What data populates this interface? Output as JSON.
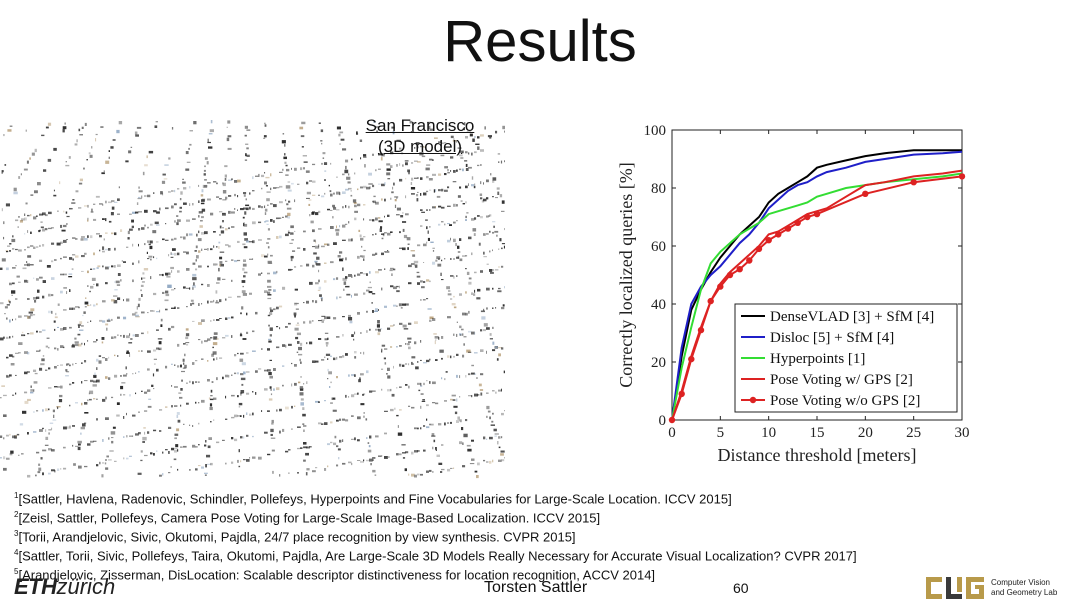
{
  "slide": {
    "title": "Results",
    "page_number": "60",
    "author": "Torsten Sattler"
  },
  "map": {
    "label_line1": "San Francisco",
    "label_line2": "(3D model)"
  },
  "references": [
    {
      "num": "1",
      "text": "[Sattler, Havlena, Radenovic, Schindler, Pollefeys, Hyperpoints and Fine Vocabularies for Large-Scale Location. ICCV 2015]"
    },
    {
      "num": "2",
      "text": "[Zeisl, Sattler, Pollefeys, Camera Pose Voting for Large-Scale Image-Based Localization. ICCV 2015]"
    },
    {
      "num": "3",
      "text": "[Torii, Arandjelovic, Sivic, Okutomi, Pajdla, 24/7 place recognition by view synthesis. CVPR 2015]"
    },
    {
      "num": "4",
      "text": "[Sattler, Torii, Sivic, Pollefeys, Taira, Okutomi, Pajdla, Are Large-Scale 3D Models Really Necessary for Accurate Visual Localization? CVPR 2017]"
    },
    {
      "num": "5",
      "text": "[Arandjelovic, Zisserman, DisLocation: Scalable descriptor distinctiveness for location recognition, ACCV 2014]"
    }
  ],
  "footer": {
    "eth_bold": "ETH",
    "eth_rest": "zürich",
    "lab_line1": "Computer Vision",
    "lab_line2": "and Geometry Lab",
    "lab_logo": "CVG"
  },
  "colors": {
    "densevlad": "#000000",
    "disloc": "#1f1fc8",
    "hyperpoints": "#33dd33",
    "pose_gps": "#dd2222",
    "pose_nogps": "#dd2222",
    "logo_gold": "#b89a4a",
    "logo_dark": "#3a3a3a"
  },
  "chart_data": {
    "type": "line",
    "xlabel": "Distance threshold [meters]",
    "ylabel": "Correctly localized queries [%]",
    "xlim": [
      0,
      30
    ],
    "ylim": [
      0,
      100
    ],
    "xticks": [
      0,
      5,
      10,
      15,
      20,
      25,
      30
    ],
    "yticks": [
      0,
      20,
      40,
      60,
      80,
      100
    ],
    "legend_position": "bottom-right",
    "series": [
      {
        "name": "DenseVLAD [3] + SfM [4]",
        "color": "#000000",
        "marker": false,
        "x": [
          0,
          1,
          2,
          3,
          4,
          5,
          6,
          7,
          8,
          9,
          10,
          11,
          12,
          13,
          14,
          15,
          16,
          18,
          20,
          22,
          25,
          28,
          30
        ],
        "y": [
          0,
          22,
          38,
          45,
          51,
          56,
          60,
          64,
          67,
          70,
          75,
          78,
          80,
          82,
          84,
          87,
          88,
          89.5,
          91,
          92,
          93,
          93,
          93
        ]
      },
      {
        "name": "Disloc [5] + SfM [4]",
        "color": "#1f1fc8",
        "marker": false,
        "x": [
          0,
          1,
          2,
          3,
          4,
          5,
          6,
          7,
          8,
          9,
          10,
          11,
          12,
          13,
          14,
          15,
          16,
          18,
          20,
          22,
          25,
          28,
          30
        ],
        "y": [
          0,
          25,
          40,
          46,
          50,
          53,
          57,
          61,
          64,
          68,
          73,
          76,
          79,
          81,
          82,
          84,
          85.5,
          87,
          89,
          90,
          91.5,
          92,
          92.5
        ]
      },
      {
        "name": "Hyperpoints [1]",
        "color": "#33dd33",
        "marker": false,
        "x": [
          0,
          1,
          2,
          3,
          4,
          5,
          6,
          7,
          8,
          9,
          10,
          11,
          12,
          13,
          14,
          15,
          16,
          18,
          20,
          22,
          25,
          28,
          30
        ],
        "y": [
          0,
          18,
          32,
          45,
          54,
          58,
          61,
          64,
          66,
          68,
          71,
          72,
          73,
          74,
          75,
          77,
          78,
          80,
          81,
          82,
          83,
          84,
          85
        ]
      },
      {
        "name": "Pose Voting w/ GPS [2]",
        "color": "#dd2222",
        "marker": false,
        "x": [
          0,
          1,
          2,
          3,
          4,
          5,
          6,
          7,
          8,
          9,
          10,
          11,
          12,
          13,
          14,
          15,
          16,
          18,
          20,
          22,
          25,
          28,
          30
        ],
        "y": [
          0,
          10,
          22,
          32,
          41,
          47,
          51,
          54,
          57,
          60,
          64,
          65,
          67,
          69,
          71,
          72,
          73,
          77,
          81,
          82,
          84,
          85,
          86
        ]
      },
      {
        "name": "Pose Voting w/o GPS [2]",
        "color": "#dd2222",
        "marker": true,
        "x": [
          0,
          1,
          2,
          3,
          4,
          5,
          6,
          7,
          8,
          9,
          10,
          11,
          12,
          13,
          14,
          15,
          20,
          25,
          30
        ],
        "y": [
          0,
          9,
          21,
          31,
          41,
          46,
          50,
          52,
          55,
          59,
          62,
          64,
          66,
          68,
          70,
          71,
          78,
          82,
          84
        ]
      }
    ]
  }
}
